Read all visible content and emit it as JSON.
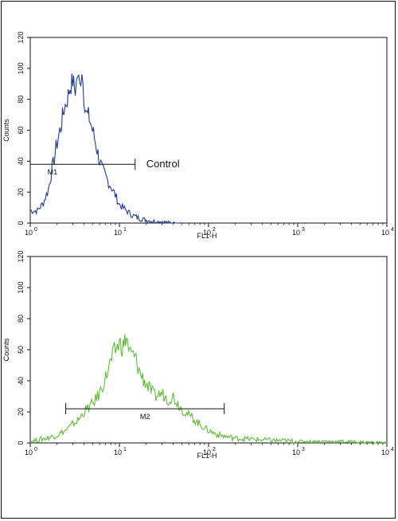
{
  "chart_data": [
    {
      "type": "line",
      "xlabel": "FL1-H",
      "ylabel": "Counts",
      "x_scale": "log",
      "xlim": [
        1,
        10000
      ],
      "ylim": [
        0,
        120
      ],
      "x_tick_labels": [
        "10",
        "10",
        "10",
        "10",
        "10"
      ],
      "x_tick_exponents": [
        "0",
        "1",
        "2",
        "3",
        "4"
      ],
      "y_ticks": [
        0,
        20,
        40,
        60,
        80,
        100,
        120
      ],
      "series": [
        {
          "color": "#1f3a9a",
          "x": [
            1.0,
            1.2,
            1.4,
            1.6,
            1.8,
            2.0,
            2.2,
            2.4,
            2.6,
            2.8,
            3.0,
            3.2,
            3.4,
            3.6,
            3.8,
            4.0,
            4.3,
            4.6,
            5.0,
            5.5,
            6.0,
            6.5,
            7.0,
            8.0,
            9.0,
            10.0,
            12.0,
            14.0,
            17.0,
            20.0,
            25.0,
            30.0,
            40.0,
            50.0
          ],
          "y": [
            8,
            8,
            13,
            22,
            38,
            52,
            62,
            74,
            80,
            88,
            92,
            86,
            96,
            88,
            100,
            82,
            70,
            68,
            60,
            50,
            40,
            34,
            30,
            24,
            18,
            12,
            8,
            5,
            3,
            2,
            1,
            1,
            0,
            0
          ]
        }
      ],
      "marker": {
        "label": "M1",
        "x_start": 1.0,
        "x_end": 15.0,
        "y": 38
      },
      "annotation": "Control"
    },
    {
      "type": "line",
      "xlabel": "FL1-H",
      "ylabel": "Counts",
      "x_scale": "log",
      "xlim": [
        1,
        10000
      ],
      "ylim": [
        0,
        120
      ],
      "x_tick_labels": [
        "10",
        "10",
        "10",
        "10",
        "10"
      ],
      "x_tick_exponents": [
        "0",
        "1",
        "2",
        "3",
        "4"
      ],
      "y_ticks": [
        0,
        20,
        40,
        60,
        80,
        100,
        120
      ],
      "series": [
        {
          "color": "#5fbf3a",
          "x": [
            1.0,
            1.5,
            2.0,
            2.5,
            3.0,
            3.5,
            4.0,
            5.0,
            6.0,
            7.0,
            8.0,
            9.0,
            10.0,
            11.0,
            12.0,
            13.0,
            15.0,
            17.0,
            20.0,
            25.0,
            30.0,
            35.0,
            40.0,
            50.0,
            60.0,
            80.0,
            100.0,
            130.0,
            200.0,
            400.0,
            1000.0,
            3000.0,
            10000.0
          ],
          "y": [
            1,
            3,
            5,
            8,
            12,
            15,
            20,
            25,
            32,
            42,
            52,
            60,
            64,
            62,
            68,
            58,
            55,
            45,
            38,
            30,
            32,
            28,
            30,
            22,
            18,
            12,
            8,
            5,
            3,
            2,
            1,
            1,
            0
          ]
        }
      ],
      "marker": {
        "label": "M2",
        "x_start": 2.5,
        "x_end": 150.0,
        "y": 22
      }
    }
  ]
}
